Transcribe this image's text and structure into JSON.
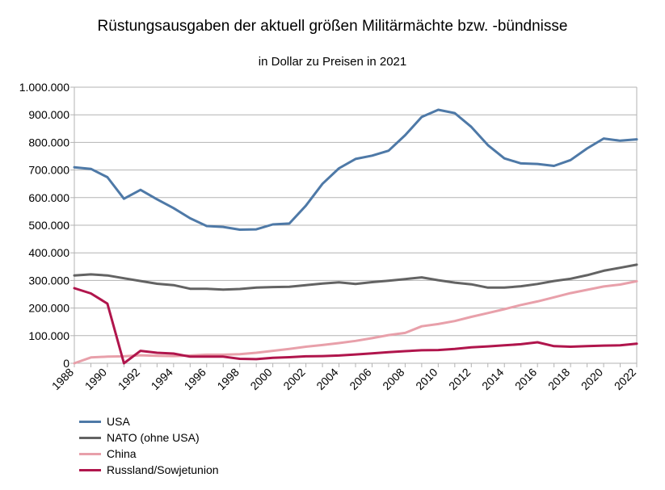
{
  "chart_data": {
    "type": "line",
    "title": "Rüstungsausgaben der aktuell größen Militärmächte bzw. -bündnisse",
    "subtitle": "in Dollar zu Preisen in 2021",
    "xlabel": "",
    "ylabel": "",
    "ylim": [
      0,
      1000000
    ],
    "yticks": [
      0,
      100000,
      200000,
      300000,
      400000,
      500000,
      600000,
      700000,
      800000,
      900000,
      1000000
    ],
    "ytick_labels": [
      "0",
      "100.000",
      "200.000",
      "300.000",
      "400.000",
      "500.000",
      "600.000",
      "700.000",
      "800.000",
      "900.000",
      "1.000.000"
    ],
    "x": [
      1988,
      1989,
      1990,
      1991,
      1992,
      1993,
      1994,
      1995,
      1996,
      1997,
      1998,
      1999,
      2000,
      2001,
      2002,
      2003,
      2004,
      2005,
      2006,
      2007,
      2008,
      2009,
      2010,
      2011,
      2012,
      2013,
      2014,
      2015,
      2016,
      2017,
      2018,
      2019,
      2020,
      2021,
      2022
    ],
    "xtick_labels": [
      "1988",
      "1990",
      "1992",
      "1994",
      "1996",
      "1998",
      "2000",
      "2002",
      "2004",
      "2006",
      "2008",
      "2010",
      "2012",
      "2014",
      "2016",
      "2018",
      "2020",
      "2022"
    ],
    "grid": true,
    "legend_position": "bottom-left",
    "series": [
      {
        "name": "USA",
        "color": "#4e79a7",
        "values": [
          710000,
          704000,
          674000,
          596000,
          628000,
          594000,
          562000,
          525000,
          497000,
          494000,
          484000,
          485000,
          503000,
          506000,
          571000,
          650000,
          706000,
          740000,
          752000,
          770000,
          826000,
          892000,
          918000,
          906000,
          856000,
          790000,
          742000,
          724000,
          722000,
          715000,
          736000,
          778000,
          814000,
          806000,
          811000
        ]
      },
      {
        "name": "NATO (ohne USA)",
        "color": "#636363",
        "values": [
          318000,
          322000,
          318000,
          308000,
          298000,
          288000,
          283000,
          270000,
          270000,
          267000,
          269000,
          274000,
          276000,
          277000,
          283000,
          289000,
          293000,
          287000,
          294000,
          299000,
          305000,
          311000,
          301000,
          292000,
          286000,
          274000,
          274000,
          279000,
          287000,
          298000,
          306000,
          319000,
          335000,
          346000,
          357000
        ]
      },
      {
        "name": "China",
        "color": "#e8a0aa",
        "values": [
          0,
          21000,
          24000,
          25000,
          29000,
          27000,
          26000,
          28000,
          31000,
          31000,
          33000,
          38000,
          45000,
          52000,
          60000,
          66000,
          73000,
          81000,
          91000,
          102000,
          110000,
          134000,
          142000,
          153000,
          168000,
          182000,
          196000,
          211000,
          224000,
          239000,
          254000,
          266000,
          278000,
          285000,
          297000
        ]
      },
      {
        "name": "Russland/Sowjetunion",
        "color": "#b0154c",
        "values": [
          272000,
          253000,
          216000,
          0,
          45000,
          38000,
          35000,
          24000,
          24000,
          24000,
          16000,
          15000,
          20000,
          22000,
          25000,
          26000,
          28000,
          32000,
          36000,
          40000,
          44000,
          47000,
          48000,
          52000,
          58000,
          61000,
          65000,
          69000,
          76000,
          62000,
          60000,
          62000,
          64000,
          65000,
          71000
        ]
      }
    ]
  }
}
